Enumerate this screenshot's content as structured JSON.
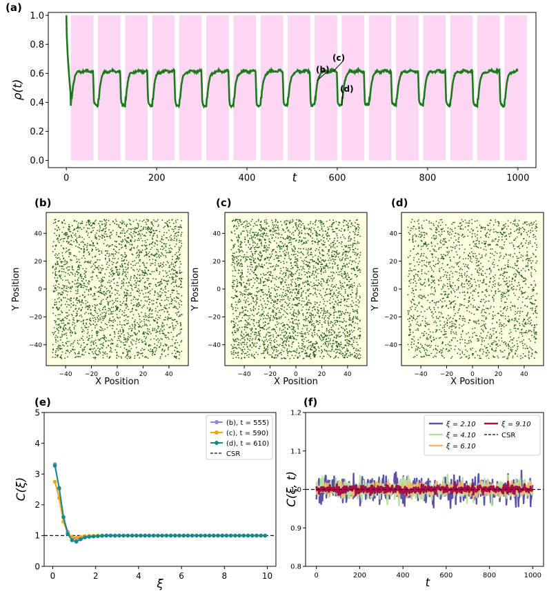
{
  "colors": {
    "density_line": "#1a7a1a",
    "shade": "#fbd7f4",
    "scatter_bg": "#fdfde1",
    "scatter_dot": "#1d5a1d",
    "b": "#9b7ee6",
    "c": "#f5a30c",
    "d": "#128a8c",
    "csr": "#000000",
    "xi_2_10": "#5b52a3",
    "xi_4_10": "#b7e0a3",
    "xi_6_10": "#f3b56b",
    "xi_9_10": "#a0124a"
  },
  "panels": {
    "a": {
      "letter": "(a)"
    },
    "b": {
      "letter": "(b)"
    },
    "c": {
      "letter": "(c)"
    },
    "d": {
      "letter": "(d)"
    },
    "e": {
      "letter": "(e)"
    },
    "f": {
      "letter": "(f)"
    }
  },
  "chart_data": [
    {
      "panel": "a",
      "type": "line",
      "xlabel": "t",
      "ylabel": "ρ(t)",
      "xlim": [
        -40,
        1040
      ],
      "ylim": [
        -0.05,
        1.02
      ],
      "xticks": [
        "0",
        "200",
        "400",
        "600",
        "800",
        "1000"
      ],
      "yticks": [
        "0.0",
        "0.2",
        "0.4",
        "0.6",
        "0.8",
        "1.0"
      ],
      "shaded_intervals_t": [
        [
          10,
          60
        ],
        [
          70,
          120
        ],
        [
          130,
          180
        ],
        [
          190,
          240
        ],
        [
          250,
          300
        ],
        [
          310,
          360
        ],
        [
          370,
          420
        ],
        [
          430,
          480
        ],
        [
          490,
          540
        ],
        [
          550,
          600
        ],
        [
          610,
          660
        ],
        [
          670,
          720
        ],
        [
          730,
          780
        ],
        [
          790,
          840
        ],
        [
          850,
          900
        ],
        [
          910,
          960
        ],
        [
          970,
          1020
        ]
      ],
      "cycle_period": 60,
      "cycle_low": 0.38,
      "cycle_high": 0.615,
      "start_value": 1.0,
      "end_t": 1000,
      "annotations": [
        {
          "label": "(b)",
          "t": 555,
          "value": 0.55,
          "color_key": "b"
        },
        {
          "label": "(c)",
          "t": 590,
          "value": 0.61,
          "color_key": "c"
        },
        {
          "label": "(d)",
          "t": 610,
          "value": 0.38,
          "color_key": "d"
        }
      ],
      "grid": false
    },
    {
      "panel": "b",
      "type": "scatter",
      "xlabel": "X Position",
      "ylabel": "Y Position",
      "xlim": [
        -55,
        55
      ],
      "ylim": [
        -55,
        55
      ],
      "xticks": [
        "−40",
        "−20",
        "0",
        "20",
        "40"
      ],
      "yticks": [
        "−40",
        "−20",
        "0",
        "20",
        "40"
      ],
      "points_approx": 2600,
      "extent": [
        -50,
        50
      ]
    },
    {
      "panel": "c",
      "type": "scatter",
      "xlabel": "X Position",
      "ylabel": "Y Position",
      "xlim": [
        -55,
        55
      ],
      "ylim": [
        -55,
        55
      ],
      "xticks": [
        "−40",
        "−20",
        "0",
        "20",
        "40"
      ],
      "yticks": [
        "−40",
        "−20",
        "0",
        "20",
        "40"
      ],
      "points_approx": 3000,
      "extent": [
        -50,
        50
      ]
    },
    {
      "panel": "d",
      "type": "scatter",
      "xlabel": "X Position",
      "ylabel": "Y Position",
      "xlim": [
        -55,
        55
      ],
      "ylim": [
        -55,
        55
      ],
      "xticks": [
        "−40",
        "−20",
        "0",
        "20",
        "40"
      ],
      "yticks": [
        "−40",
        "−20",
        "0",
        "20",
        "40"
      ],
      "points_approx": 1900,
      "extent": [
        -50,
        50
      ]
    },
    {
      "panel": "e",
      "type": "line",
      "xlabel": "ξ",
      "ylabel": "C(ξ)",
      "xlim": [
        -0.4,
        10.4
      ],
      "ylim": [
        0,
        5
      ],
      "xticks": [
        "0",
        "2",
        "4",
        "6",
        "8",
        "10"
      ],
      "yticks": [
        "0",
        "1",
        "2",
        "3",
        "4",
        "5"
      ],
      "x": [
        0.1,
        0.3,
        0.5,
        0.7,
        0.9,
        1.1,
        1.3,
        1.5,
        1.7,
        1.9,
        2.1,
        2.3,
        2.5,
        2.7,
        2.9,
        3.1,
        3.3,
        3.5,
        3.7,
        3.9,
        4.1,
        4.3,
        4.5,
        4.7,
        4.9,
        5.1,
        5.3,
        5.5,
        5.7,
        5.9,
        6.1,
        6.3,
        6.5,
        6.7,
        6.9,
        7.1,
        7.3,
        7.5,
        7.7,
        7.9,
        8.1,
        8.3,
        8.5,
        8.7,
        8.9,
        9.1,
        9.3,
        9.5,
        9.7,
        9.9
      ],
      "series": [
        {
          "name": "(b), t = 555)",
          "color_key": "b",
          "values": [
            3.32,
            2.52,
            1.6,
            1.12,
            0.92,
            0.88,
            0.93,
            0.96,
            0.97,
            0.98,
            0.99,
            1.0,
            1.0,
            1.0,
            0.99,
            1.0,
            1.0,
            1.0,
            1.0,
            1.0,
            1.0,
            1.0,
            1.0,
            1.0,
            1.0,
            1.0,
            1.0,
            1.0,
            1.0,
            1.0,
            1.0,
            1.0,
            1.0,
            1.0,
            1.0,
            1.0,
            1.0,
            1.0,
            1.0,
            1.0,
            1.0,
            1.0,
            1.0,
            1.0,
            1.0,
            1.0,
            1.0,
            1.0,
            1.0,
            0.99
          ]
        },
        {
          "name": "(c), t = 590)",
          "color_key": "c",
          "values": [
            2.75,
            2.22,
            1.45,
            1.08,
            0.95,
            0.93,
            0.96,
            0.98,
            0.99,
            0.99,
            1.0,
            1.0,
            1.0,
            1.0,
            1.0,
            1.0,
            1.0,
            1.0,
            1.0,
            1.0,
            1.0,
            1.0,
            1.0,
            1.0,
            1.0,
            1.0,
            1.0,
            1.0,
            1.0,
            1.0,
            1.0,
            1.0,
            1.0,
            1.0,
            1.0,
            1.0,
            1.0,
            1.0,
            1.0,
            1.0,
            1.0,
            1.0,
            1.0,
            1.0,
            1.0,
            1.0,
            1.0,
            1.0,
            1.0,
            1.0
          ]
        },
        {
          "name": "(d), t = 610)",
          "color_key": "d",
          "values": [
            3.27,
            2.55,
            1.6,
            1.05,
            0.85,
            0.8,
            0.88,
            0.94,
            0.96,
            0.97,
            0.98,
            0.99,
            1.0,
            1.0,
            1.0,
            1.0,
            1.0,
            1.0,
            1.0,
            1.0,
            1.0,
            1.0,
            1.0,
            1.0,
            1.0,
            1.0,
            1.0,
            1.0,
            1.0,
            1.0,
            1.0,
            1.0,
            1.0,
            1.0,
            1.0,
            1.0,
            1.0,
            1.0,
            1.0,
            1.0,
            1.0,
            1.0,
            1.0,
            1.0,
            1.0,
            1.0,
            1.0,
            1.0,
            1.0,
            1.0
          ]
        }
      ],
      "reference": {
        "name": "CSR",
        "value": 1.0
      },
      "legend": "top-right",
      "grid": false
    },
    {
      "panel": "f",
      "type": "line",
      "xlabel": "t",
      "ylabel": "C(ξ, t)",
      "xlim": [
        -50,
        1050
      ],
      "ylim": [
        0.8,
        1.2
      ],
      "xticks": [
        "0",
        "200",
        "400",
        "600",
        "800",
        "1000"
      ],
      "yticks": [
        "0.8",
        "0.9",
        "1.0",
        "1.1",
        "1.2"
      ],
      "t_range": [
        0,
        1000
      ],
      "samples": 500,
      "series": [
        {
          "name": "ξ = 2.10",
          "color_key": "xi_2_10",
          "mean": 1.0,
          "amplitude": 0.032,
          "width": 2.4
        },
        {
          "name": "ξ = 4.10",
          "color_key": "xi_4_10",
          "mean": 1.0,
          "amplitude": 0.022,
          "width": 2.4
        },
        {
          "name": "ξ = 6.10",
          "color_key": "xi_6_10",
          "mean": 1.0,
          "amplitude": 0.016,
          "width": 2.4
        },
        {
          "name": "ξ = 9.10",
          "color_key": "xi_9_10",
          "mean": 1.0,
          "amplitude": 0.01,
          "width": 3.0
        }
      ],
      "reference": {
        "name": "CSR",
        "value": 1.0
      },
      "legend": "top-right",
      "grid": false
    }
  ]
}
